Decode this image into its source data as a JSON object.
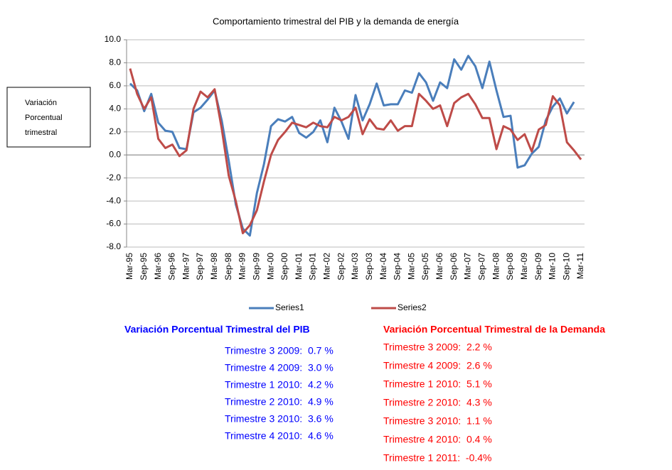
{
  "chart_data": {
    "type": "line",
    "title": "Comportamiento trimestral del PIB y la demanda de energía",
    "ylabel": [
      "Variación",
      "Porcentual",
      "trimestral"
    ],
    "categories": [
      "Mar-95",
      null,
      "Sep-95",
      null,
      "Mar-96",
      null,
      "Sep-96",
      null,
      "Mar-97",
      null,
      "Sep-97",
      null,
      "Mar-98",
      null,
      "Sep-98",
      null,
      "Mar-99",
      null,
      "Sep-99",
      null,
      "Mar-00",
      null,
      "Sep-00",
      null,
      "Mar-01",
      null,
      "Sep-01",
      null,
      "Mar-02",
      null,
      "Sep-02",
      null,
      "Mar-03",
      null,
      "Sep-03",
      null,
      "Mar-04",
      null,
      "Sep-04",
      null,
      "Mar-05",
      null,
      "Sep-05",
      null,
      "Mar-06",
      null,
      "Sep-06",
      null,
      "Mar-07",
      null,
      "Sep-07",
      null,
      "Mar-08",
      null,
      "Sep-08",
      null,
      "Mar-09",
      null,
      "Sep-09",
      null,
      "Mar-10",
      null,
      "Sep-10",
      null,
      "Mar-11"
    ],
    "series": [
      {
        "name": "Series1",
        "color": "#4a7ebb",
        "values": [
          6.2,
          5.6,
          3.8,
          5.3,
          2.8,
          2.1,
          2.0,
          0.6,
          0.5,
          3.7,
          4.1,
          4.8,
          5.6,
          3.0,
          -0.5,
          -4.3,
          -6.4,
          -7.0,
          -3.3,
          -0.8,
          2.5,
          3.1,
          2.9,
          3.3,
          1.9,
          1.5,
          2.0,
          3.0,
          1.1,
          4.1,
          2.9,
          1.4,
          5.2,
          3.0,
          4.4,
          6.2,
          4.3,
          4.4,
          4.4,
          5.6,
          5.4,
          7.1,
          6.3,
          4.7,
          6.3,
          5.8,
          8.3,
          7.4,
          8.6,
          7.7,
          5.8,
          8.1,
          5.6,
          3.3,
          3.4,
          -1.1,
          -0.9,
          0.1,
          0.7,
          3.0,
          4.2,
          4.9,
          3.6,
          4.6,
          null
        ]
      },
      {
        "name": "Series2",
        "color": "#be4b48",
        "values": [
          7.5,
          5.3,
          4.0,
          5.0,
          1.4,
          0.6,
          0.9,
          -0.1,
          0.4,
          4.0,
          5.5,
          5.0,
          5.7,
          2.3,
          -1.8,
          -4.0,
          -6.8,
          -6.1,
          -4.8,
          -2.3,
          0.0,
          1.3,
          2.0,
          2.8,
          2.6,
          2.4,
          2.8,
          2.5,
          2.4,
          3.3,
          3.0,
          3.3,
          4.1,
          1.8,
          3.1,
          2.3,
          2.2,
          3.0,
          2.1,
          2.5,
          2.5,
          5.3,
          4.7,
          4.0,
          4.3,
          2.5,
          4.5,
          5.0,
          5.3,
          4.4,
          3.2,
          3.2,
          0.5,
          2.5,
          2.2,
          1.3,
          1.8,
          0.3,
          2.2,
          2.6,
          5.1,
          4.3,
          1.1,
          0.4,
          -0.4
        ]
      }
    ],
    "ylim": [
      -8,
      10
    ],
    "yticks": [
      {
        "value": -8,
        "label": "-8.0"
      },
      {
        "value": -6,
        "label": "-6.0"
      },
      {
        "value": -4,
        "label": "-4.0"
      },
      {
        "value": -2,
        "label": "-2.0"
      },
      {
        "value": 0,
        "label": "0.0"
      },
      {
        "value": 2,
        "label": "2.0"
      },
      {
        "value": 4,
        "label": "4.0"
      },
      {
        "value": 6,
        "label": "6.0"
      },
      {
        "value": 8,
        "label": "8.0"
      },
      {
        "value": 10,
        "label": "10.0"
      }
    ],
    "grid": true,
    "legend": "bottom",
    "annotations": [
      {
        "title": "Variación Porcentual Trimestral del PIB",
        "color": "#0000ff",
        "lines": [
          "Trimestre 3 2009:  0.7 %",
          "Trimestre 4 2009:  3.0 %",
          "Trimestre 1 2010:  4.2 %",
          "Trimestre 2 2010:  4.9 %",
          "Trimestre 3 2010:  3.6 %",
          "Trimestre 4 2010:  4.6 %"
        ]
      },
      {
        "title": "Variación Porcentual Trimestral de la Demanda",
        "color": "#ff0000",
        "lines": [
          "Trimestre 3 2009:  2.2 %",
          "Trimestre 4 2009:  2.6 %",
          "Trimestre 1 2010:  5.1 %",
          "Trimestre 2 2010:  4.3 %",
          "Trimestre 3 2010:  1.1 %",
          "Trimestre 4 2010:  0.4 %",
          "Trimestre 1 2011:  -0.4%"
        ]
      }
    ]
  }
}
